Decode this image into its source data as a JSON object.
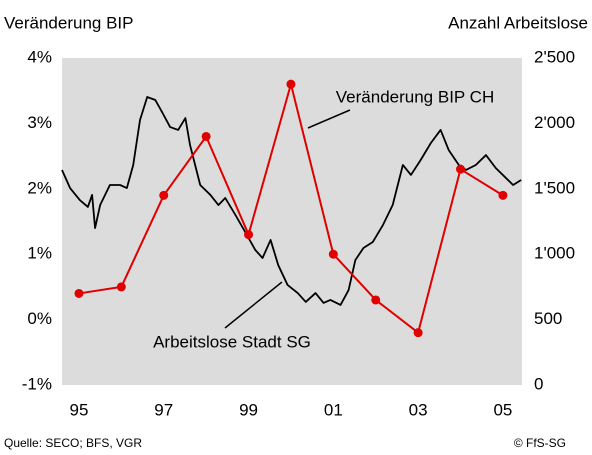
{
  "chart_data": {
    "type": "line",
    "ylabel": "Veränderung BIP",
    "y2label": "Anzahl Arbeitslose",
    "source": "Quelle: SECO; BFS, VGR",
    "copyright": "© FfS-SG",
    "xlim": [
      1994.6,
      2005.45
    ],
    "xticks": [
      {
        "value": 1995,
        "label": "95"
      },
      {
        "value": 1997,
        "label": "97"
      },
      {
        "value": 1999,
        "label": "99"
      },
      {
        "value": 2001,
        "label": "01"
      },
      {
        "value": 2003,
        "label": "03"
      },
      {
        "value": 2005,
        "label": "05"
      }
    ],
    "ylim": [
      -1,
      4
    ],
    "yticks": [
      {
        "value": -1,
        "label": "-1%"
      },
      {
        "value": 0,
        "label": "0%"
      },
      {
        "value": 1,
        "label": "1%"
      },
      {
        "value": 2,
        "label": "2%"
      },
      {
        "value": 3,
        "label": "3%"
      },
      {
        "value": 4,
        "label": "4%"
      }
    ],
    "y2lim": [
      0,
      2500
    ],
    "y2ticks": [
      0,
      500,
      {
        "value": 1000,
        "label": "1'000"
      },
      {
        "value": 1500,
        "label": "1'500"
      },
      {
        "value": 2000,
        "label": "2'000"
      },
      {
        "value": 2500,
        "label": "2'500"
      }
    ],
    "background": "#dcdcdc",
    "series": [
      {
        "name": "Arbeitslose Stadt SG",
        "color": "#000000",
        "axis": "y2",
        "markers": false,
        "x": [
          1994.6,
          1994.79,
          1995.02,
          1995.21,
          1995.31,
          1995.38,
          1995.5,
          1995.73,
          1995.97,
          1996.13,
          1996.28,
          1996.44,
          1996.61,
          1996.8,
          1996.96,
          1997.15,
          1997.34,
          1997.51,
          1997.62,
          1997.86,
          1998.1,
          1998.29,
          1998.45,
          1998.69,
          1998.92,
          1999.16,
          1999.33,
          1999.52,
          1999.7,
          1999.92,
          2000.16,
          2000.35,
          2000.58,
          2000.77,
          2000.93,
          2001.17,
          2001.36,
          2001.52,
          2001.71,
          2001.93,
          2002.17,
          2002.4,
          2002.64,
          2002.83,
          2003.06,
          2003.3,
          2003.53,
          2003.72,
          2003.96,
          2004.13,
          2004.36,
          2004.6,
          2004.83,
          2005.07,
          2005.24,
          2005.43
        ],
        "values": [
          1644,
          1506,
          1414,
          1361,
          1453,
          1200,
          1376,
          1529,
          1529,
          1506,
          1682,
          2026,
          2202,
          2179,
          2087,
          1972,
          1950,
          2041,
          1835,
          1529,
          1453,
          1376,
          1430,
          1300,
          1170,
          1032,
          971,
          1109,
          917,
          765,
          703,
          635,
          703,
          627,
          650,
          612,
          726,
          956,
          1047,
          1093,
          1223,
          1376,
          1682,
          1606,
          1720,
          1850,
          1950,
          1797,
          1682,
          1644,
          1682,
          1758,
          1659,
          1583,
          1529,
          1567
        ]
      },
      {
        "name": "Veränderung BIP CH",
        "color": "#e00000",
        "markers": true,
        "x": [
          1995,
          1996,
          1997,
          1998,
          1999,
          2000,
          2001,
          2002,
          2003,
          2004,
          2005
        ],
        "values": [
          0.4,
          0.5,
          1.9,
          2.8,
          1.3,
          3.6,
          1.0,
          0.3,
          -0.2,
          2.3,
          1.9
        ]
      }
    ]
  }
}
